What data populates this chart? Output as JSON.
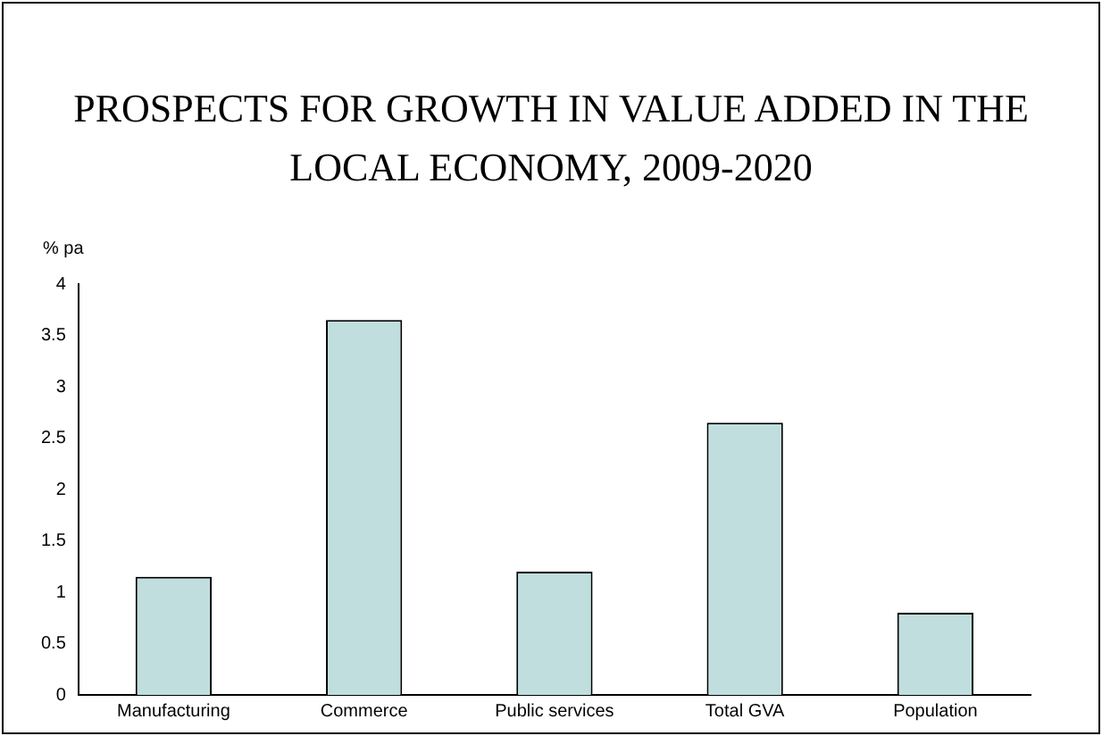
{
  "chart_data": {
    "type": "bar",
    "title": "PROSPECTS FOR GROWTH IN VALUE ADDED IN THE LOCAL ECONOMY, 2009-2020",
    "ylabel": "% pa",
    "categories": [
      "Manufacturing",
      "Commerce",
      "Public services",
      "Total GVA",
      "Population"
    ],
    "values": [
      1.15,
      3.65,
      1.2,
      2.65,
      0.8
    ],
    "color": "#c0dede",
    "ylim": [
      0,
      4
    ],
    "yticks": [
      0,
      0.5,
      1,
      1.5,
      2,
      2.5,
      3,
      3.5,
      4
    ],
    "grid": false,
    "legend": false
  }
}
